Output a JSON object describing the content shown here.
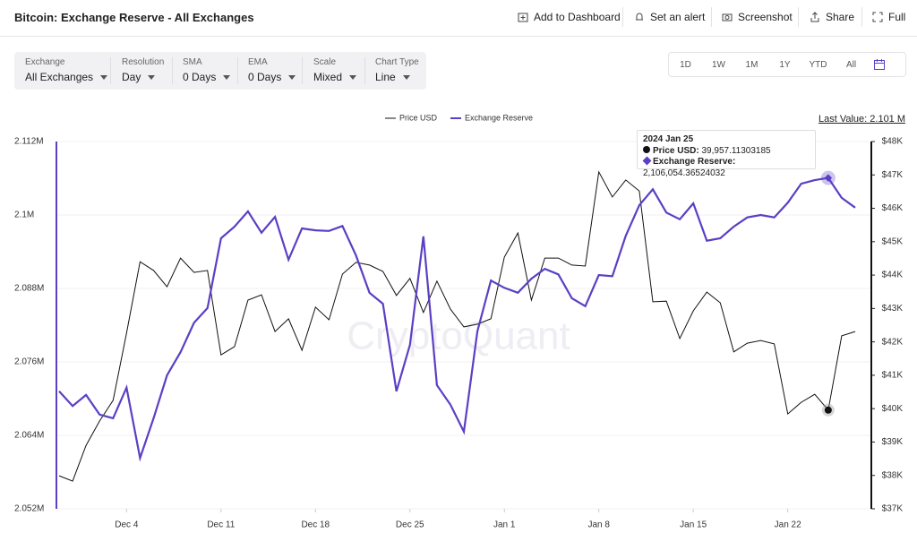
{
  "header": {
    "title": "Bitcoin: Exchange Reserve - All Exchanges",
    "actions": [
      "Add to Dashboard",
      "Set an alert",
      "Screenshot",
      "Share",
      "Full"
    ]
  },
  "filters": [
    {
      "label": "Exchange",
      "value": "All Exchanges"
    },
    {
      "label": "Resolution",
      "value": "Day"
    },
    {
      "label": "SMA",
      "value": "0 Days"
    },
    {
      "label": "EMA",
      "value": "0 Days"
    },
    {
      "label": "Scale",
      "value": "Mixed"
    },
    {
      "label": "Chart Type",
      "value": "Line"
    }
  ],
  "ranges": [
    "1D",
    "1W",
    "1M",
    "1Y",
    "YTD",
    "All"
  ],
  "chart_data": {
    "type": "line",
    "watermark": "CryptoQuant",
    "last_value": "Last Value: 2.101 M",
    "x": [
      "2023-11-29",
      "2023-11-30",
      "2023-12-01",
      "2023-12-02",
      "2023-12-03",
      "2023-12-04",
      "2023-12-05",
      "2023-12-06",
      "2023-12-07",
      "2023-12-08",
      "2023-12-09",
      "2023-12-10",
      "2023-12-11",
      "2023-12-12",
      "2023-12-13",
      "2023-12-14",
      "2023-12-15",
      "2023-12-16",
      "2023-12-17",
      "2023-12-18",
      "2023-12-19",
      "2023-12-20",
      "2023-12-21",
      "2023-12-22",
      "2023-12-23",
      "2023-12-24",
      "2023-12-25",
      "2023-12-26",
      "2023-12-27",
      "2023-12-28",
      "2023-12-29",
      "2023-12-30",
      "2023-12-31",
      "2024-01-01",
      "2024-01-02",
      "2024-01-03",
      "2024-01-04",
      "2024-01-05",
      "2024-01-06",
      "2024-01-07",
      "2024-01-08",
      "2024-01-09",
      "2024-01-10",
      "2024-01-11",
      "2024-01-12",
      "2024-01-13",
      "2024-01-14",
      "2024-01-15",
      "2024-01-16",
      "2024-01-17",
      "2024-01-18",
      "2024-01-19",
      "2024-01-20",
      "2024-01-21",
      "2024-01-22",
      "2024-01-23",
      "2024-01-24",
      "2024-01-25",
      "2024-01-26",
      "2024-01-27"
    ],
    "xlim": [
      "2023-11-29",
      "2024-01-27"
    ],
    "xticks": [
      {
        "value": "2023-12-04",
        "label": "Dec 4"
      },
      {
        "value": "2023-12-11",
        "label": "Dec 11"
      },
      {
        "value": "2023-12-18",
        "label": "Dec 18"
      },
      {
        "value": "2023-12-25",
        "label": "Dec 25"
      },
      {
        "value": "2024-01-01",
        "label": "Jan 1"
      },
      {
        "value": "2024-01-08",
        "label": "Jan 8"
      },
      {
        "value": "2024-01-15",
        "label": "Jan 15"
      },
      {
        "value": "2024-01-22",
        "label": "Jan 22"
      }
    ],
    "ylim": [
      2052000,
      2112000
    ],
    "yticks": [
      {
        "value": 2052000,
        "label": "2.052M"
      },
      {
        "value": 2064000,
        "label": "2.064M"
      },
      {
        "value": 2076000,
        "label": "2.076M"
      },
      {
        "value": 2088000,
        "label": "2.088M"
      },
      {
        "value": 2100000,
        "label": "2.1M"
      },
      {
        "value": 2112000,
        "label": "2.112M"
      }
    ],
    "y2lim": [
      37000,
      48000
    ],
    "y2ticks": [
      {
        "value": 37000,
        "label": "$37K"
      },
      {
        "value": 38000,
        "label": "$38K"
      },
      {
        "value": 39000,
        "label": "$39K"
      },
      {
        "value": 40000,
        "label": "$40K"
      },
      {
        "value": 41000,
        "label": "$41K"
      },
      {
        "value": 42000,
        "label": "$42K"
      },
      {
        "value": 43000,
        "label": "$43K"
      },
      {
        "value": 44000,
        "label": "$44K"
      },
      {
        "value": 45000,
        "label": "$45K"
      },
      {
        "value": 46000,
        "label": "$46K"
      },
      {
        "value": 47000,
        "label": "$47K"
      },
      {
        "value": 48000,
        "label": "$48K"
      }
    ],
    "grid": true,
    "series": [
      {
        "name": "Price USD",
        "color": "#111111",
        "axis": "y2",
        "values": [
          37990,
          37830,
          38900,
          39630,
          40250,
          42260,
          44400,
          44140,
          43650,
          44510,
          44080,
          44140,
          41610,
          41860,
          43250,
          43410,
          42310,
          42690,
          41750,
          43040,
          42660,
          44030,
          44380,
          44300,
          44110,
          43390,
          43900,
          42880,
          43820,
          42980,
          42450,
          42530,
          42690,
          44540,
          45260,
          43250,
          44510,
          44510,
          44300,
          44270,
          47090,
          46340,
          46850,
          46520,
          43200,
          43220,
          42100,
          42930,
          43490,
          43170,
          41700,
          41960,
          42040,
          41940,
          39840,
          40190,
          40430,
          39957.11303185,
          42180,
          42310
        ]
      },
      {
        "name": "Exchange Reserve",
        "color": "#5b3fc4",
        "axis": "y",
        "values": [
          2071200,
          2068800,
          2070600,
          2067400,
          2066800,
          2071800,
          2060300,
          2066800,
          2073800,
          2077600,
          2082400,
          2084800,
          2096200,
          2098100,
          2100600,
          2097100,
          2099700,
          2092700,
          2097800,
          2097500,
          2097400,
          2098200,
          2093400,
          2087300,
          2085500,
          2071200,
          2078800,
          2096500,
          2072200,
          2069000,
          2064600,
          2081000,
          2089300,
          2088100,
          2087300,
          2089600,
          2091200,
          2090300,
          2086400,
          2085100,
          2090200,
          2090000,
          2096600,
          2101600,
          2104200,
          2100400,
          2099300,
          2101900,
          2095800,
          2096200,
          2098100,
          2099600,
          2100000,
          2099600,
          2102000,
          2105100,
          2105700,
          2106054.36524032,
          2102800,
          2101200
        ]
      }
    ],
    "tooltip": {
      "title": "2024 Jan 25",
      "index": 57,
      "labels": [
        "39,957.11303185",
        "2,106,054.36524032"
      ]
    }
  }
}
